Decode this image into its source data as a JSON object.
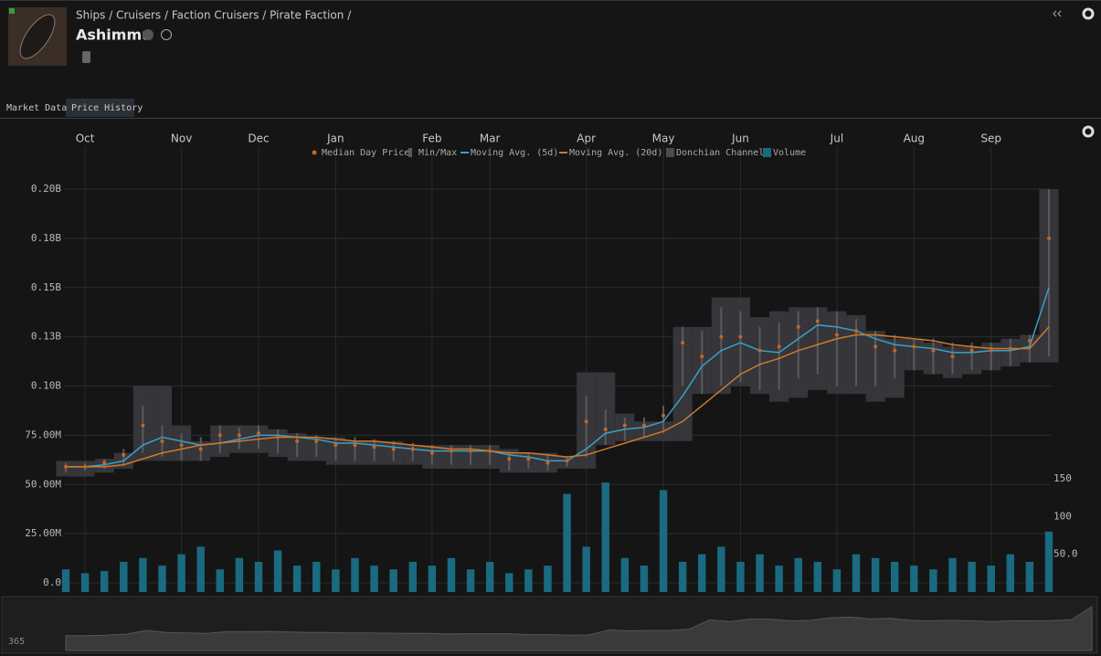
{
  "header": {
    "breadcrumb": "Ships / Cruisers / Faction Cruisers / Pirate Faction /",
    "title": "Ashimmu"
  },
  "tabs": [
    "Market Data",
    "Price History"
  ],
  "chart_data": {
    "type": "line",
    "categories": [
      null,
      "Oct",
      null,
      null,
      null,
      null,
      "Nov",
      null,
      null,
      null,
      "Dec",
      null,
      null,
      null,
      "Jan",
      null,
      null,
      null,
      null,
      "Feb",
      null,
      null,
      "Mar",
      null,
      null,
      null,
      null,
      "Apr",
      null,
      null,
      null,
      "May",
      null,
      null,
      null,
      "Jun",
      null,
      null,
      null,
      null,
      "Jul",
      null,
      null,
      null,
      "Aug",
      null,
      null,
      null,
      "Sep",
      null,
      null,
      null
    ],
    "ylim": [
      0,
      200
    ],
    "yticks": [
      {
        "value": 0,
        "label": "0.0"
      },
      {
        "value": 25,
        "label": "25.00M"
      },
      {
        "value": 50,
        "label": "50.00M"
      },
      {
        "value": 75,
        "label": "75.00M"
      },
      {
        "value": 100,
        "label": "0.10B"
      },
      {
        "value": 125,
        "label": "0.13B"
      },
      {
        "value": 150,
        "label": "0.15B"
      },
      {
        "value": 175,
        "label": "0.18B"
      },
      {
        "value": 200,
        "label": "0.20B"
      }
    ],
    "y2lim": [
      0,
      150
    ],
    "y2ticks": [
      {
        "value": 50,
        "label": "50.0"
      },
      100,
      150
    ],
    "grid": true,
    "series": [
      {
        "name": "Median Day Price",
        "color": "#c8641e",
        "values": [
          59,
          59,
          61,
          65,
          80,
          72,
          70,
          68,
          75,
          75,
          76,
          74,
          72,
          72,
          70,
          70,
          69,
          68,
          68,
          66,
          67,
          67,
          67,
          63,
          63,
          61,
          62,
          82,
          78,
          80,
          80,
          85,
          122,
          115,
          125,
          125,
          118,
          120,
          130,
          133,
          126,
          128,
          120,
          118,
          120,
          118,
          115,
          118,
          118,
          119,
          123,
          175
        ]
      },
      {
        "name": "Min/Max",
        "color": "#5a5a5e",
        "min": [
          56,
          57,
          58,
          60,
          66,
          64,
          62,
          62,
          66,
          68,
          68,
          66,
          64,
          64,
          62,
          62,
          62,
          62,
          62,
          60,
          60,
          60,
          60,
          57,
          58,
          57,
          59,
          64,
          70,
          72,
          74,
          76,
          100,
          96,
          100,
          102,
          98,
          98,
          104,
          106,
          100,
          100,
          100,
          104,
          108,
          106,
          106,
          108,
          108,
          110,
          112,
          115
        ],
        "max": [
          61,
          61,
          63,
          68,
          90,
          80,
          76,
          74,
          80,
          79,
          80,
          78,
          76,
          75,
          74,
          74,
          73,
          72,
          71,
          70,
          70,
          70,
          70,
          67,
          66,
          65,
          64,
          95,
          88,
          84,
          84,
          90,
          130,
          128,
          140,
          138,
          130,
          132,
          138,
          140,
          138,
          134,
          128,
          126,
          124,
          124,
          122,
          122,
          122,
          124,
          126,
          200
        ]
      },
      {
        "name": "Moving Avg.  (5d)",
        "color": "#3aa0c8",
        "values": [
          59,
          59,
          60,
          62,
          70,
          74,
          72,
          70,
          71,
          73,
          75,
          75,
          74,
          73,
          71,
          71,
          70,
          69,
          68,
          67,
          67,
          67,
          67,
          65,
          64,
          62,
          62,
          68,
          76,
          78,
          79,
          82,
          95,
          110,
          118,
          122,
          118,
          117,
          124,
          131,
          130,
          128,
          124,
          121,
          120,
          119,
          117,
          117,
          118,
          118,
          120,
          150
        ]
      },
      {
        "name": "Moving Avg.  (20d)",
        "color": "#d07a2a",
        "values": [
          59,
          59,
          59,
          60,
          63,
          66,
          68,
          70,
          71,
          72,
          73,
          74,
          74,
          74,
          73,
          72,
          72,
          71,
          70,
          69,
          68,
          68,
          67,
          66,
          66,
          65,
          64,
          65,
          68,
          71,
          74,
          77,
          82,
          90,
          98,
          106,
          111,
          114,
          118,
          121,
          124,
          126,
          126,
          125,
          124,
          123,
          121,
          120,
          119,
          119,
          119,
          130
        ]
      },
      {
        "name": "Donchian Channel",
        "color": "#38383e",
        "low": [
          54,
          54,
          56,
          58,
          62,
          62,
          62,
          62,
          64,
          66,
          66,
          64,
          62,
          62,
          60,
          60,
          60,
          60,
          60,
          58,
          58,
          58,
          58,
          56,
          56,
          56,
          58,
          58,
          70,
          72,
          72,
          72,
          72,
          96,
          96,
          100,
          96,
          92,
          94,
          98,
          96,
          96,
          92,
          94,
          108,
          106,
          104,
          106,
          108,
          110,
          112,
          112
        ],
        "high": [
          62,
          62,
          63,
          66,
          100,
          100,
          80,
          72,
          80,
          80,
          80,
          78,
          76,
          74,
          74,
          72,
          72,
          72,
          70,
          70,
          70,
          70,
          70,
          68,
          66,
          66,
          64,
          107,
          107,
          86,
          82,
          82,
          130,
          130,
          145,
          145,
          135,
          138,
          140,
          140,
          138,
          136,
          128,
          124,
          124,
          122,
          120,
          120,
          122,
          124,
          126,
          200
        ]
      },
      {
        "name": "Volume",
        "color": "#1a6a80",
        "axis": "y2",
        "values": [
          30,
          25,
          28,
          40,
          45,
          35,
          50,
          60,
          30,
          45,
          40,
          55,
          35,
          40,
          30,
          45,
          35,
          30,
          40,
          35,
          45,
          30,
          40,
          25,
          30,
          35,
          130,
          60,
          145,
          45,
          35,
          135,
          40,
          50,
          60,
          40,
          50,
          35,
          45,
          40,
          30,
          50,
          45,
          40,
          35,
          30,
          45,
          40,
          35,
          50,
          40,
          80
        ]
      }
    ]
  },
  "navigator": {
    "label": "365"
  }
}
